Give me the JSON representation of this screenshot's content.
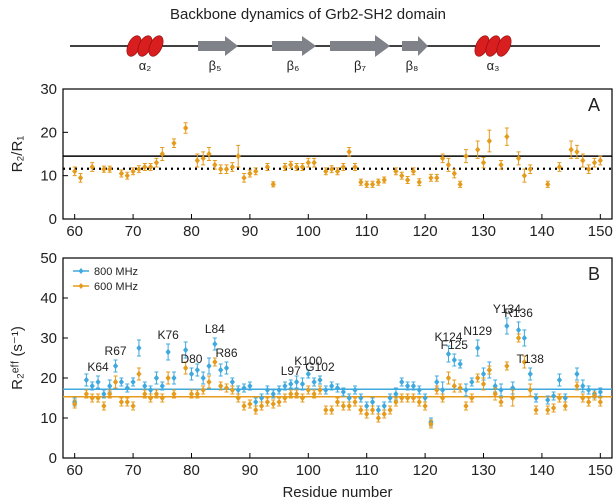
{
  "title": "Backbone dynamics of Grb2-SH2 domain",
  "secondary_structure": [
    "α₂",
    "β₅",
    "β₆",
    "β₇",
    "β₈",
    "α₃"
  ],
  "chart_data": [
    {
      "type": "scatter",
      "panel_label": "A",
      "ylabel": "R₂/R₁",
      "xlim": [
        58,
        152
      ],
      "xticks": [
        60,
        70,
        80,
        90,
        100,
        110,
        120,
        130,
        140,
        150
      ],
      "ylim": [
        0,
        30
      ],
      "yticks": [
        0,
        10,
        20,
        30
      ],
      "hlines": [
        {
          "value": 14.5,
          "color": "#000000",
          "style": "solid"
        },
        {
          "value": 11.6,
          "color": "#000000",
          "style": "dotted"
        }
      ],
      "x": [
        60,
        61,
        63,
        65,
        66,
        68,
        69,
        70,
        71,
        72,
        73,
        74,
        75,
        77,
        79,
        81,
        82,
        83,
        84,
        85,
        86,
        87,
        88,
        89,
        90,
        91,
        93,
        94,
        96,
        97,
        98,
        99,
        100,
        101,
        103,
        104,
        105,
        106,
        107,
        108,
        109,
        110,
        111,
        112,
        113,
        115,
        116,
        117,
        118,
        119,
        121,
        122,
        123,
        124,
        125,
        126,
        127,
        129,
        130,
        131,
        133,
        134,
        136,
        137,
        138,
        141,
        143,
        145,
        146,
        147,
        148,
        149,
        150
      ],
      "series": [
        {
          "color": "#e59b1c",
          "values": [
            11,
            9.5,
            12,
            11.5,
            11.5,
            10.5,
            10,
            11,
            11.5,
            12,
            12,
            13,
            15,
            17.5,
            21,
            13.5,
            14,
            15,
            12.5,
            11.5,
            11.5,
            12,
            14.5,
            9.5,
            10.5,
            11,
            12,
            8,
            12,
            12.5,
            12,
            12,
            13,
            13,
            11,
            11.5,
            11,
            12,
            15.5,
            12,
            8.5,
            8,
            8,
            8.5,
            9,
            11,
            10,
            9,
            11,
            8.5,
            9.5,
            9.5,
            14,
            12.5,
            10.5,
            8,
            14.5,
            16,
            13,
            18,
            12.5,
            19,
            14,
            10,
            11.5,
            8,
            12,
            16,
            15.5,
            13.5,
            11.5,
            13,
            13.5
          ],
          "errors": [
            1,
            1,
            1,
            0.7,
            0.7,
            0.8,
            0.8,
            0.8,
            0.8,
            0.8,
            0.8,
            1,
            1.5,
            1,
            1.2,
            1.5,
            1.5,
            1.5,
            1,
            1,
            1,
            1,
            2.5,
            1,
            0.8,
            0.8,
            0.8,
            0.6,
            0.8,
            0.8,
            0.8,
            0.8,
            1,
            1,
            0.8,
            0.8,
            0.8,
            0.8,
            1,
            0.8,
            0.7,
            0.7,
            0.7,
            0.7,
            0.7,
            0.8,
            0.8,
            0.8,
            0.8,
            0.8,
            0.8,
            0.8,
            1,
            1.5,
            1,
            0.7,
            1.5,
            2,
            1.2,
            2.5,
            1,
            2,
            1.5,
            1.5,
            1,
            0.7,
            1,
            2,
            1.5,
            1.5,
            1,
            1,
            1
          ]
        }
      ]
    },
    {
      "type": "scatter",
      "panel_label": "B",
      "ylabel": "R₂ᵉᶠᶠ (s⁻¹)",
      "xlabel": "Residue number",
      "xlim": [
        58,
        152
      ],
      "xticks": [
        60,
        70,
        80,
        90,
        100,
        110,
        120,
        130,
        140,
        150
      ],
      "ylim": [
        0,
        50
      ],
      "yticks": [
        0,
        10,
        20,
        30,
        40,
        50
      ],
      "legend": "upper left",
      "hlines": [
        {
          "value": 17.2,
          "color": "#3fa9df",
          "style": "solid"
        },
        {
          "value": 15.3,
          "color": "#e59b1c",
          "style": "solid"
        }
      ],
      "x": [
        60,
        62,
        63,
        64,
        65,
        66,
        67,
        68,
        69,
        70,
        71,
        72,
        73,
        74,
        75,
        76,
        77,
        79,
        80,
        81,
        82,
        83,
        84,
        85,
        86,
        87,
        88,
        89,
        90,
        91,
        92,
        93,
        94,
        95,
        96,
        97,
        98,
        99,
        100,
        101,
        102,
        103,
        104,
        105,
        106,
        107,
        108,
        109,
        110,
        111,
        112,
        113,
        114,
        115,
        116,
        117,
        118,
        119,
        120,
        121,
        122,
        123,
        124,
        125,
        126,
        127,
        128,
        129,
        130,
        131,
        132,
        133,
        134,
        135,
        136,
        137,
        138,
        139,
        141,
        142,
        143,
        144,
        146,
        147,
        148,
        149,
        150
      ],
      "series": [
        {
          "name": "800 MHz",
          "color": "#3fa9df",
          "values": [
            14,
            19.5,
            18,
            19,
            16,
            18,
            23,
            19,
            17.5,
            19,
            27.5,
            18,
            17,
            20,
            18,
            26.5,
            20,
            27,
            21,
            22,
            20,
            23,
            28.5,
            22,
            22.5,
            19,
            17,
            17.5,
            18,
            14,
            15,
            17,
            16,
            17,
            18,
            18.5,
            19,
            18.5,
            21,
            19,
            19.5,
            17,
            18,
            17.5,
            16.5,
            15,
            17,
            15,
            13,
            14,
            12,
            13,
            15,
            16,
            19,
            18,
            18,
            17,
            15,
            9,
            19,
            17,
            26,
            24.5,
            23.5,
            17,
            19,
            27.5,
            21,
            22,
            18,
            17,
            33,
            17.5,
            32,
            30,
            21,
            15,
            14.5,
            15.5,
            19.5,
            15,
            21,
            18,
            17,
            16,
            16.5
          ],
          "errors": [
            1,
            1.5,
            1,
            1.5,
            1,
            1.5,
            1.5,
            1,
            1,
            1,
            2,
            1,
            1,
            1.5,
            1,
            2,
            1.5,
            2,
            1.5,
            1.5,
            1.5,
            2,
            1.5,
            1.5,
            1.5,
            1,
            1,
            1,
            1,
            1,
            1,
            1,
            1,
            1,
            1,
            1,
            1.5,
            1.5,
            1,
            1,
            1,
            1,
            1,
            1,
            1,
            1,
            1,
            1,
            1,
            1,
            1,
            1,
            1,
            1.5,
            1,
            1,
            1,
            1,
            1,
            1,
            1.5,
            2,
            2,
            1.5,
            1,
            1.5,
            1,
            2,
            1.5,
            2,
            1.5,
            1.5,
            2,
            1.5,
            2,
            2,
            1.5,
            1,
            1,
            1,
            1.5,
            1,
            1.5,
            1.5,
            1,
            1,
            1
          ]
        },
        {
          "name": "600 MHz",
          "color": "#e59b1c",
          "values": [
            13.5,
            16,
            15,
            15,
            13,
            16,
            19,
            14,
            14,
            13,
            21,
            16,
            15,
            16,
            15,
            20,
            16,
            22.5,
            16,
            16,
            17,
            19,
            24,
            18,
            17.5,
            17,
            15,
            13,
            13.5,
            12,
            13,
            14,
            13.5,
            14,
            15,
            16,
            16,
            15,
            17,
            16,
            17,
            12,
            12,
            14,
            13,
            13,
            14,
            12,
            11,
            12,
            10,
            11,
            12,
            14,
            15,
            15,
            15,
            14,
            13,
            8.5,
            17,
            15,
            20,
            18,
            17.5,
            13,
            15,
            20,
            18.5,
            22,
            16,
            14,
            23,
            15,
            30,
            24,
            17,
            12,
            12,
            12.5,
            15,
            13,
            18,
            15,
            14,
            15.5,
            14
          ],
          "errors": [
            1,
            1,
            1,
            1,
            1,
            1,
            1.5,
            1,
            1,
            1,
            1.5,
            1,
            1,
            1,
            1,
            1.5,
            1,
            1.5,
            1,
            1,
            1,
            1.5,
            1,
            1,
            1,
            1,
            1,
            1,
            1,
            1,
            1,
            1,
            1,
            1,
            1,
            1,
            1,
            1,
            1,
            1,
            1,
            1,
            1,
            1,
            1,
            1,
            1,
            1,
            1,
            1,
            1,
            1,
            1,
            1,
            1,
            1,
            1,
            1,
            1,
            1,
            1,
            1,
            1.5,
            1.5,
            1,
            1,
            1,
            1,
            1.5,
            1,
            1.5,
            1,
            1,
            2,
            1,
            1.5,
            1.5,
            1,
            1,
            1,
            1,
            1,
            1,
            1,
            1,
            1,
            1
          ]
        }
      ],
      "annotations": [
        {
          "text": "K64",
          "x": 64
        },
        {
          "text": "R67",
          "x": 67
        },
        {
          "text": "K76",
          "x": 76
        },
        {
          "text": "D80",
          "x": 80
        },
        {
          "text": "L84",
          "x": 84
        },
        {
          "text": "R86",
          "x": 86
        },
        {
          "text": "L97",
          "x": 97
        },
        {
          "text": "K100",
          "x": 100
        },
        {
          "text": "G102",
          "x": 102
        },
        {
          "text": "K124",
          "x": 124
        },
        {
          "text": "F125",
          "x": 125
        },
        {
          "text": "N129",
          "x": 129
        },
        {
          "text": "Y134",
          "x": 134
        },
        {
          "text": "R136",
          "x": 136
        },
        {
          "text": "T138",
          "x": 138
        }
      ]
    }
  ]
}
